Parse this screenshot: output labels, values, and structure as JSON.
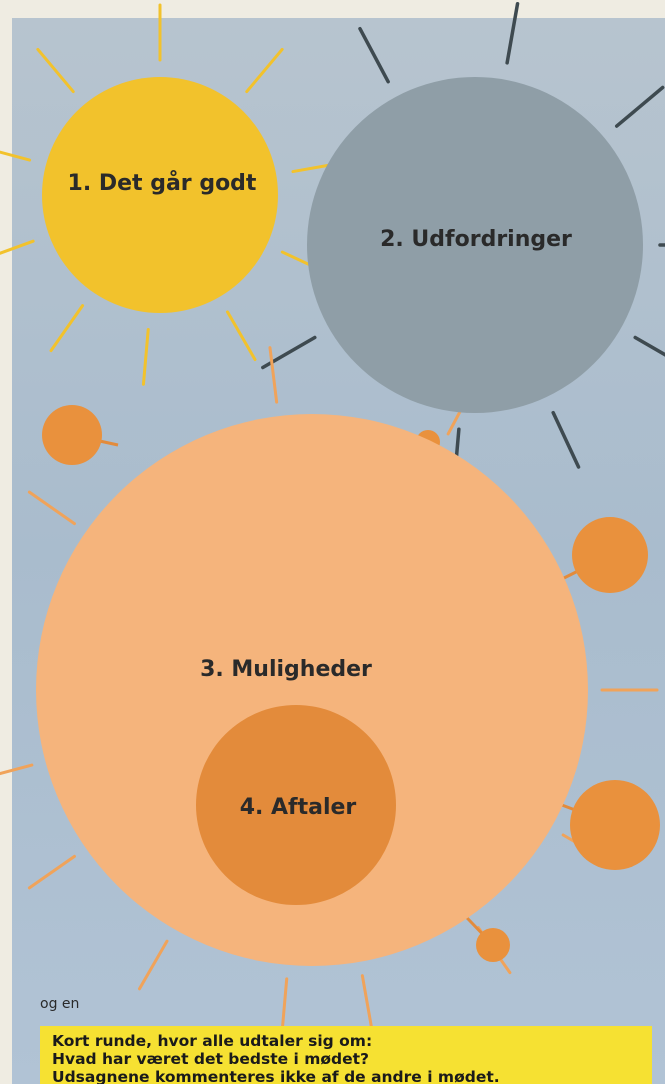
{
  "nodes": [
    {
      "label": "1. Det går godt"
    },
    {
      "label": "2. Udfordringer"
    },
    {
      "label": "3. Muligheder"
    },
    {
      "label": "4. Aftaler"
    }
  ],
  "intro": "og en",
  "box": {
    "lines": [
      "Kort runde, hvor alle udtaler sig om:",
      "Hvad har været det bedste i mødet?",
      "Udsagnene kommenteres ikke af de andre i mødet."
    ]
  }
}
